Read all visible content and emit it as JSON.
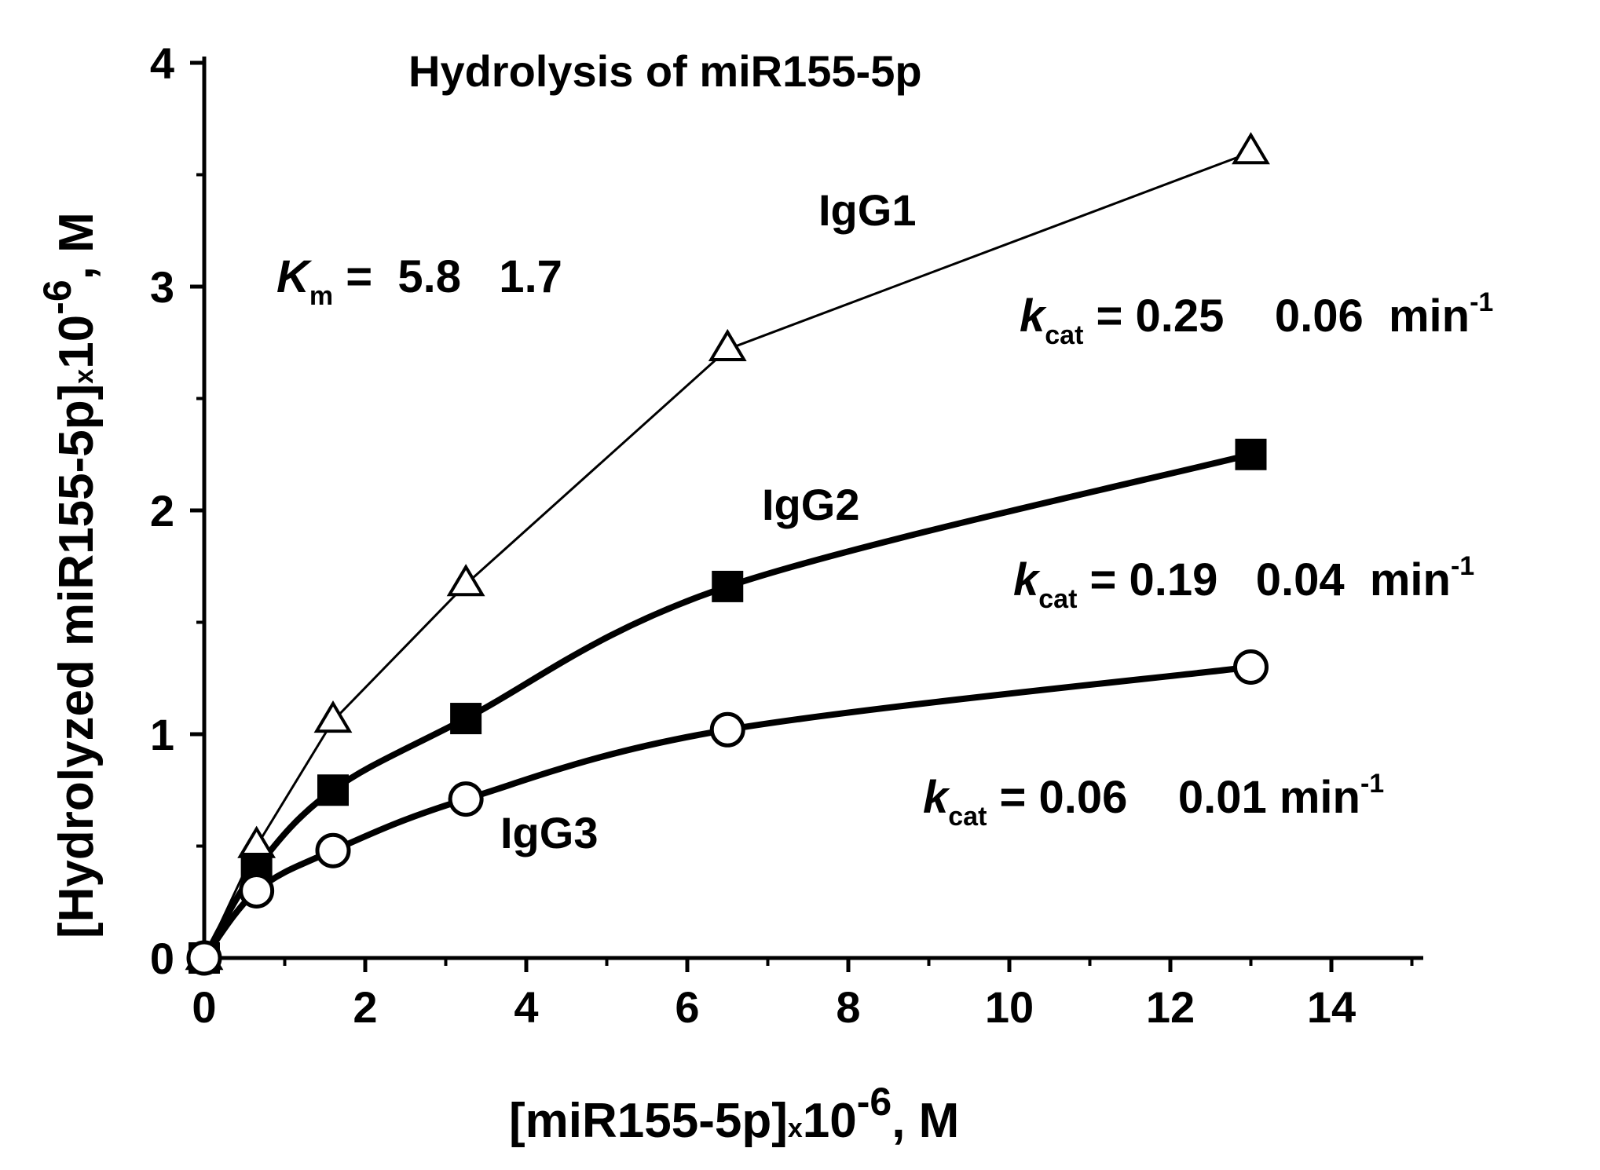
{
  "chart_data": {
    "type": "line",
    "title": "Hydrolysis of miR155-5p",
    "xlabel": {
      "main": "[miR155-5p]",
      "times": "x",
      "base": "10",
      "exp": "-6",
      "unit": ", M"
    },
    "ylabel": {
      "main": "[Hydrolyzed miR155-5p]",
      "times": "x",
      "base": "10",
      "exp": "-6",
      "unit": ", M"
    },
    "xlim": [
      0,
      15
    ],
    "ylim": [
      0,
      4
    ],
    "xticks": [
      "0",
      "2",
      "4",
      "6",
      "8",
      "10",
      "12",
      "14"
    ],
    "yticks": [
      "0",
      "1",
      "2",
      "3",
      "4"
    ],
    "grid": false,
    "series": [
      {
        "name": "IgG1",
        "marker": "open-triangle",
        "line": "thin",
        "x": [
          0,
          0.65,
          1.6,
          3.25,
          6.5,
          13.0
        ],
        "y": [
          0,
          0.5,
          1.06,
          1.67,
          2.72,
          3.6
        ]
      },
      {
        "name": "IgG2",
        "marker": "filled-square",
        "line": "thick",
        "x": [
          0,
          0.65,
          1.6,
          3.25,
          6.5,
          13.0
        ],
        "y": [
          0,
          0.4,
          0.75,
          1.07,
          1.66,
          2.25
        ]
      },
      {
        "name": "IgG3",
        "marker": "open-circle",
        "line": "thick",
        "x": [
          0,
          0.65,
          1.6,
          3.25,
          6.5,
          13.0
        ],
        "y": [
          0,
          0.3,
          0.48,
          0.71,
          1.02,
          1.3
        ]
      }
    ],
    "annotations": {
      "km": {
        "symbol": "K",
        "sub": "m",
        "text": " =  5.8   1.7"
      },
      "kcat_igg1": {
        "symbol": "k",
        "sub": "cat",
        "text": " = 0.25    0.06  min",
        "sup": "-1"
      },
      "kcat_igg2": {
        "symbol": "k",
        "sub": "cat",
        "text": " = 0.19   0.04  min",
        "sup": "-1"
      },
      "kcat_igg3": {
        "symbol": "k",
        "sub": "cat",
        "text": " = 0.06    0.01 min",
        "sup": "-1"
      }
    }
  }
}
